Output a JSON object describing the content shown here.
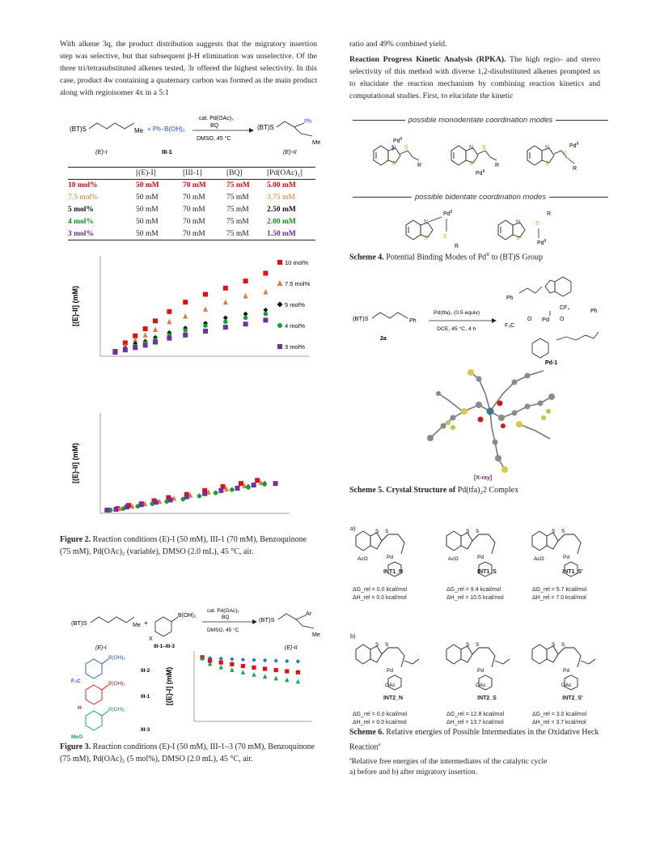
{
  "left_col": {
    "para1": "With alkene 3q, the product distribution suggests that the migratory insertion step was selective, but that subsequent β-H elimination was unselective. Of the three tri/tetrasubstituted alkenes tested, 3r offered the highest selectivity. In this case, product 4w containing a quaternary carbon was formed as the main product along with regioisomer 4x in a 5:1"
  },
  "right_col": {
    "para1": "ratio and 49% combined yield.",
    "para2_bold": "Reaction Progress Kinetic Analysis (RPKA).",
    "para2": " The high regio- and stereo selectivity of this method with diverse 1,2-disubstituted alkenes prompted us to elucidate the reaction mechanism by combining reaction kinetics and computational studies. First, to elucidate the kinetic"
  },
  "scheme_top": {
    "reactant": "(BT)S",
    "reactant_me": "Me",
    "reagent": "+ Ph–B(OH)₂",
    "cond1": "cat. Pd(OAc)₂",
    "cond2": "BQ",
    "cond3": "DMSO, 45 °C",
    "product": "(BT)S",
    "product_ph": "Ph",
    "product_me": "Me",
    "label1": "(E)-I",
    "label2": "III-1",
    "label3": "(E)-II"
  },
  "table": {
    "headers": [
      "",
      "[(E)-I]",
      "[III-1]",
      "[BQ]",
      "[Pd(OAc)₂]"
    ],
    "rows": [
      [
        "10 mol%",
        "50 mM",
        "70 mM",
        "75 mM",
        "5.00 mM"
      ],
      [
        "7.5 mol%",
        "50 mM",
        "70 mM",
        "75 mM",
        "3.75 mM"
      ],
      [
        "5 mol%",
        "50 mM",
        "70 mM",
        "75 mM",
        "2.50 mM"
      ],
      [
        "4 mol%",
        "50 mM",
        "70 mM",
        "75 mM",
        "2.00 mM"
      ],
      [
        "3 mol%",
        "50 mM",
        "70 mM",
        "75 mM",
        "1.50 mM"
      ]
    ]
  },
  "chart_data": [
    {
      "type": "scatter",
      "ylabel": "[(E)-II] (mM)",
      "xlabel": "",
      "xlim": [
        0,
        10
      ],
      "ylim": [
        0,
        12
      ],
      "series": [
        {
          "name": "10 mol%",
          "color": "#e01010",
          "marker": "square",
          "x": [
            0.5,
            1,
            1.5,
            2,
            2.5,
            3.2,
            4,
            5,
            6,
            7,
            8
          ],
          "y": [
            0.3,
            1.4,
            2.3,
            3.2,
            4.2,
            5.4,
            6.6,
            7.6,
            8.4,
            9.3,
            10.3
          ]
        },
        {
          "name": "7.5 mol%",
          "color": "#e07a40",
          "marker": "triangle",
          "x": [
            0.5,
            1,
            1.5,
            2,
            2.5,
            3.2,
            4,
            5,
            6,
            7,
            8
          ],
          "y": [
            0.3,
            1.0,
            1.8,
            2.4,
            3.1,
            4.1,
            4.8,
            5.7,
            6.6,
            7.4,
            7.9
          ]
        },
        {
          "name": "5 mol%",
          "color": "#111111",
          "marker": "diamond",
          "x": [
            0.5,
            1,
            1.5,
            2,
            2.5,
            3.2,
            4,
            5,
            6,
            7,
            8
          ],
          "y": [
            0.3,
            0.7,
            1.3,
            1.6,
            2.1,
            2.7,
            3.3,
            3.9,
            4.6,
            5.1,
            5.6
          ]
        },
        {
          "name": "4 mol%",
          "color": "#10a030",
          "marker": "circle",
          "x": [
            0.5,
            1,
            1.5,
            2,
            2.5,
            3.2,
            4,
            5,
            6,
            7,
            8
          ],
          "y": [
            0.2,
            0.6,
            1.0,
            1.4,
            1.8,
            2.4,
            3.0,
            3.6,
            4.1,
            4.6,
            5.1
          ]
        },
        {
          "name": "3 mol%",
          "color": "#7030a0",
          "marker": "square",
          "x": [
            0.5,
            1,
            1.5,
            2,
            2.5,
            3.2,
            4,
            5,
            6,
            7,
            8
          ],
          "y": [
            0.2,
            0.5,
            0.8,
            1.1,
            1.5,
            2.0,
            2.4,
            2.9,
            3.4,
            3.8,
            4.3
          ]
        }
      ]
    },
    {
      "type": "scatter",
      "ylabel": "[(E)-II] (mM)",
      "xlabel": "",
      "xlim": [
        0,
        10
      ],
      "ylim": [
        0,
        12
      ],
      "series": [
        {
          "name": "10 mol%",
          "color": "#e01010",
          "marker": "square",
          "x": [
            0.2,
            0.7,
            1.3,
            2,
            2.7,
            3.5,
            4.5,
            5.5,
            6.5,
            7.5,
            8.4
          ],
          "y": [
            0.1,
            0.3,
            0.7,
            0.9,
            1.3,
            1.7,
            2.1,
            2.6,
            3.1,
            3.5,
            3.9
          ]
        },
        {
          "name": "7.5 mol%",
          "color": "#e07a40",
          "marker": "triangle",
          "x": [
            0.2,
            0.8,
            1.5,
            2.2,
            3,
            3.8,
            4.7,
            5.7,
            6.7,
            7.7,
            8.6
          ],
          "y": [
            0.1,
            0.3,
            0.6,
            0.9,
            1.2,
            1.6,
            2.0,
            2.4,
            2.8,
            3.2,
            3.6
          ]
        },
        {
          "name": "5 mol%",
          "color": "#111111",
          "marker": "diamond",
          "x": [
            0.3,
            1,
            1.8,
            2.6,
            3.4,
            4.3,
            5.2,
            6.1,
            7,
            7.9,
            8.8
          ],
          "y": [
            0.1,
            0.3,
            0.6,
            0.9,
            1.2,
            1.5,
            1.9,
            2.3,
            2.7,
            3.1,
            3.5
          ]
        },
        {
          "name": "4 mol%",
          "color": "#10a030",
          "marker": "circle",
          "x": [
            0.3,
            1,
            1.8,
            2.6,
            3.4,
            4.3,
            5.2,
            6.1,
            7,
            7.9,
            8.8
          ],
          "y": [
            0.1,
            0.3,
            0.6,
            0.9,
            1.2,
            1.5,
            1.9,
            2.3,
            2.7,
            3.0,
            3.4
          ]
        },
        {
          "name": "3 mol%",
          "color": "#7030a0",
          "marker": "square",
          "x": [
            0.1,
            0.6,
            1.2,
            2,
            2.8,
            3.6,
            4.5,
            5.5,
            6.4,
            7.3,
            8.2,
            9.4
          ],
          "y": [
            0.1,
            0.2,
            0.5,
            0.8,
            1.1,
            1.4,
            1.8,
            2.2,
            2.6,
            2.9,
            3.3,
            3.5
          ]
        }
      ]
    },
    {
      "type": "scatter",
      "ylabel": "[(E)-I] (mM)",
      "xlabel": "",
      "xlim": [
        0,
        10
      ],
      "ylim": [
        0,
        50
      ],
      "series": [
        {
          "name": "III-2",
          "color": "#1f6fd0",
          "marker": "diamond",
          "x": [
            0.3,
            1,
            2,
            3,
            4,
            5,
            6,
            7,
            8,
            9
          ],
          "y": [
            48.5,
            47.6,
            47.2,
            46.8,
            46.4,
            46.1,
            45.8,
            45.5,
            45.2,
            45.0
          ]
        },
        {
          "name": "III-1",
          "color": "#e01010",
          "marker": "square",
          "x": [
            0.3,
            1,
            2,
            3,
            4,
            5,
            6,
            7,
            8,
            9
          ],
          "y": [
            48.2,
            45.5,
            44.2,
            42.8,
            41.4,
            40.2,
            39.2,
            38.2,
            37.3,
            36.5
          ]
        },
        {
          "name": "III-3",
          "color": "#10a050",
          "marker": "triangle",
          "x": [
            0.3,
            1,
            2,
            3,
            4,
            5,
            6,
            7,
            8,
            9
          ],
          "y": [
            47.5,
            43.2,
            40.5,
            38.4,
            36.5,
            34.7,
            33.2,
            31.8,
            30.5,
            29.3
          ]
        }
      ]
    }
  ],
  "fig2_caption_bold": "Figure 2.",
  "fig2_caption": " Reaction conditions (E)-I (50 mM), III-1 (70 mM), Benzoquinone (75 mM), Pd(OAc)₂ (variable), DMSO (2.0 mL), 45 °C, air.",
  "scheme_bottom": {
    "reactant": "(BT)S",
    "reactant_me": "Me",
    "plus": "+",
    "boronic": "B(OH)₂",
    "x_label": "X",
    "cond1": "cat. Pd(OAc)₂",
    "cond2": "BQ",
    "cond3": "DMSO, 45 °C",
    "range": "III-1–III-3",
    "product": "(BT)S",
    "product_ar": "Ar",
    "product_me": "Me",
    "label1": "(E)-I",
    "label3": "(E)-II",
    "aryl1_sub": "F₃C",
    "aryl1_b": "B(OH)₂",
    "aryl1_id": "III-2",
    "aryl2_sub": "H",
    "aryl2_b": "B(OH)₂",
    "aryl2_id": "III-1",
    "aryl3_sub": "MeO",
    "aryl3_b": "B(OH)₂",
    "aryl3_id": "III-3"
  },
  "fig3_caption_bold": "Figure 3.",
  "fig3_caption": " Reaction conditions (E)-I (50 mM), III-1–3 (70 mM), Benzoquinone (75 mM), Pd(OAc)₂ (5 mol%), DMSO (2.0 mL), 45 °C, air.",
  "scheme4": {
    "mono_heading": "possible monodentate coordination modes",
    "bi_heading": "possible bidentate coordination modes",
    "pd": "Pd",
    "pd_sup": "II",
    "s": "S",
    "n": "N",
    "r": "R",
    "caption_bold": "Scheme 4.",
    "caption": " Potential Binding Modes of Pd",
    "caption_sup": "II",
    "caption_end": " to (BT)S Group"
  },
  "scheme5": {
    "reactant": "(BT)S",
    "reactant_ph": "Ph",
    "id": "2a",
    "cond1": "Pd(tfa)₂ (0.5 equiv)",
    "cond2": "DCE, 45 °C, 4 h",
    "cf3": "CF₃",
    "f3c": "F₃C",
    "o": "O",
    "pd": "Pd",
    "ph": "Ph",
    "pd_id": "Pd-1",
    "xray": "[X-ray]",
    "caption_bold": "Scheme 5. Crystal Structure of",
    "caption": " Pd(tfa)₂2 Complex"
  },
  "scheme6": {
    "part_a": "a)",
    "part_b": "b)",
    "ints_a": [
      {
        "name": "INT1_N",
        "g": "ΔG_rel = 0.0 kcal/mol",
        "h": "ΔH_rel = 0.0 kcal/mol"
      },
      {
        "name": "INT1_S",
        "g": "ΔG_rel = 9.4 kcal/mol",
        "h": "ΔH_rel = 10.5 kcal/mol"
      },
      {
        "name": "INT1_S'",
        "g": "ΔG_rel = 5.7 kcal/mol",
        "h": "ΔH_rel = 7.0 kcal/mol"
      }
    ],
    "ints_b": [
      {
        "name": "INT2_N",
        "g": "ΔG_rel = 0.0 kcal/mol",
        "h": "ΔH_rel = 0.0 kcal/mol"
      },
      {
        "name": "INT2_S",
        "g": "ΔG_rel = 12.8 kcal/mol",
        "h": "ΔH_rel = 13.7 kcal/mol"
      },
      {
        "name": "INT2_S'",
        "g": "ΔG_rel = 3.0 kcal/mol",
        "h": "ΔH_rel = 3.7 kcal/mol"
      }
    ],
    "aco": "AcO",
    "oac": "OAc",
    "caption_bold": "Scheme 6.",
    "caption": " Relative energies of Possible Intermediates in the Oxidative Heck Reaction",
    "caption_sup": "a",
    "footnote1": "Relative free energies of the intermediates of the catalytic cycle",
    "footnote2": "a) before and b) after migratory insertion."
  }
}
